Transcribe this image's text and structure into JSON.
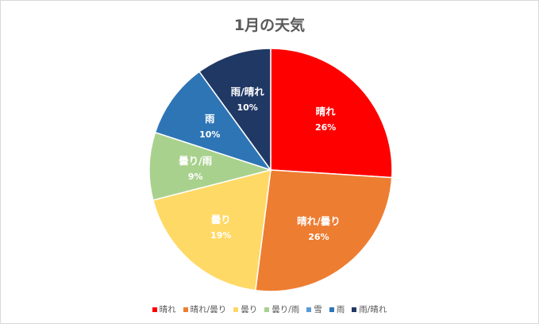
{
  "chart_data": {
    "type": "pie",
    "title": "1月の天気",
    "legend_position": "bottom",
    "slices": [
      {
        "label": "晴れ",
        "value": 26,
        "pct_label": "26%",
        "color": "#ff0000"
      },
      {
        "label": "晴れ/曇り",
        "value": 26,
        "pct_label": "26%",
        "color": "#ed7d31"
      },
      {
        "label": "曇り",
        "value": 19,
        "pct_label": "19%",
        "color": "#ffd966"
      },
      {
        "label": "曇り/雨",
        "value": 9,
        "pct_label": "9%",
        "color": "#a9d18e"
      },
      {
        "label": "雪",
        "value": 0,
        "pct_label": "",
        "color": "#5b9bd5"
      },
      {
        "label": "雨",
        "value": 10,
        "pct_label": "10%",
        "color": "#2e75b6"
      },
      {
        "label": "雨/晴れ",
        "value": 10,
        "pct_label": "10%",
        "color": "#203864"
      }
    ]
  }
}
